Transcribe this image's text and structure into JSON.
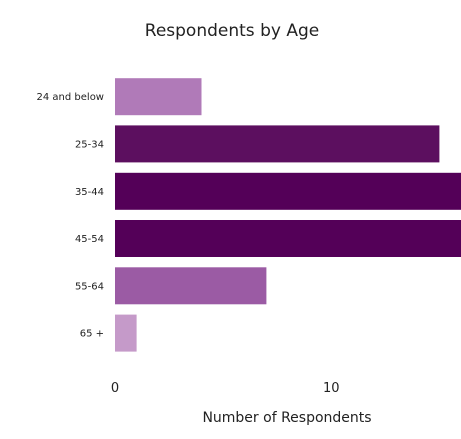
{
  "chart_data": {
    "type": "bar",
    "orientation": "horizontal",
    "title": "Respondents by Age",
    "xlabel": "Number of Respondents",
    "ylabel": "",
    "categories": [
      "24 and below",
      "25-34",
      "35-44",
      "45-54",
      "55-64",
      "65 +"
    ],
    "values": [
      4,
      15,
      16,
      16,
      7,
      1
    ],
    "bar_colors": [
      "#b07ab8",
      "#5c0f5f",
      "#540058",
      "#540058",
      "#9b5ba4",
      "#c59ac9"
    ],
    "xlim": [
      0,
      16
    ],
    "xticks": [
      0,
      10
    ],
    "grid": false,
    "legend": "none"
  }
}
